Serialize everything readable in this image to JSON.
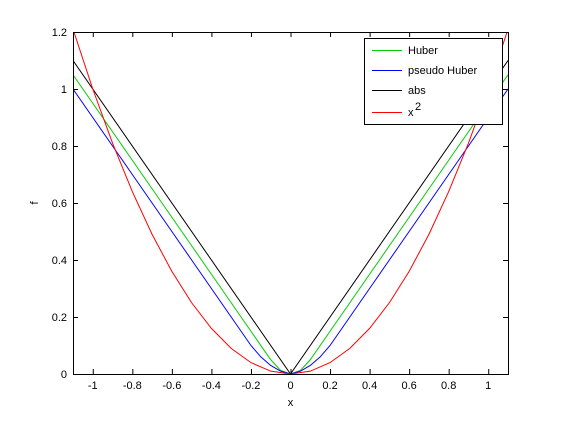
{
  "chart_data": {
    "type": "line",
    "xlabel": "x",
    "ylabel": "f",
    "xlim": [
      -1.1,
      1.1
    ],
    "ylim": [
      0,
      1.2
    ],
    "xticks": [
      -1,
      -0.8,
      -0.6,
      -0.4,
      -0.2,
      0,
      0.2,
      0.4,
      0.6,
      0.8,
      1
    ],
    "xtick_labels": [
      "-1",
      "-0.8",
      "-0.6",
      "-0.4",
      "-0.2",
      "0",
      "0.2",
      "0.4",
      "0.6",
      "0.8",
      "1"
    ],
    "yticks": [
      0,
      0.2,
      0.4,
      0.6,
      0.8,
      1,
      1.2
    ],
    "ytick_labels": [
      "0",
      "0.2",
      "0.4",
      "0.6",
      "0.8",
      "1",
      "1.2"
    ],
    "grid": false,
    "legend_position": "top-right",
    "series": [
      {
        "name": "Huber",
        "legend_label": "Huber",
        "color": "#00cc00",
        "x": [
          -1.1,
          -1.0,
          -0.9,
          -0.8,
          -0.7,
          -0.6,
          -0.5,
          -0.4,
          -0.3,
          -0.2,
          -0.1,
          -0.05,
          0,
          0.05,
          0.1,
          0.2,
          0.3,
          0.4,
          0.5,
          0.6,
          0.7,
          0.8,
          0.9,
          1.0,
          1.1
        ],
        "values": [
          1.05,
          0.95,
          0.85,
          0.75,
          0.65,
          0.55,
          0.45,
          0.35,
          0.25,
          0.15,
          0.05,
          0.0125,
          0,
          0.0125,
          0.05,
          0.15,
          0.25,
          0.35,
          0.45,
          0.55,
          0.65,
          0.75,
          0.85,
          0.95,
          1.05
        ]
      },
      {
        "name": "pseudo Huber",
        "legend_label": "pseudo Huber",
        "color": "#0000ff",
        "x": [
          -1.1,
          -1.0,
          -0.9,
          -0.8,
          -0.7,
          -0.6,
          -0.5,
          -0.4,
          -0.3,
          -0.2,
          -0.15,
          -0.1,
          -0.05,
          0,
          0.05,
          0.1,
          0.15,
          0.2,
          0.3,
          0.4,
          0.5,
          0.6,
          0.7,
          0.8,
          0.9,
          1.0,
          1.1
        ],
        "values": [
          1.0,
          0.9,
          0.8,
          0.7,
          0.6,
          0.5,
          0.4,
          0.3,
          0.2,
          0.1,
          0.06,
          0.03,
          0.01,
          0,
          0.01,
          0.03,
          0.06,
          0.1,
          0.2,
          0.3,
          0.4,
          0.5,
          0.6,
          0.7,
          0.8,
          0.9,
          1.0
        ]
      },
      {
        "name": "abs",
        "legend_label": "abs",
        "color": "#000000",
        "x": [
          -1.1,
          0,
          1.1
        ],
        "values": [
          1.1,
          0,
          1.1
        ]
      },
      {
        "name": "x^2",
        "legend_label": "x",
        "legend_sup": "2",
        "color": "#ff0000",
        "x": [
          -1.1,
          -1.0,
          -0.9,
          -0.8,
          -0.7,
          -0.6,
          -0.5,
          -0.4,
          -0.3,
          -0.2,
          -0.1,
          0,
          0.1,
          0.2,
          0.3,
          0.4,
          0.5,
          0.6,
          0.7,
          0.8,
          0.9,
          1.0,
          1.1
        ],
        "values": [
          1.21,
          1.0,
          0.81,
          0.64,
          0.49,
          0.36,
          0.25,
          0.16,
          0.09,
          0.04,
          0.01,
          0,
          0.01,
          0.04,
          0.09,
          0.16,
          0.25,
          0.36,
          0.49,
          0.64,
          0.81,
          1.0,
          1.21
        ]
      }
    ]
  }
}
